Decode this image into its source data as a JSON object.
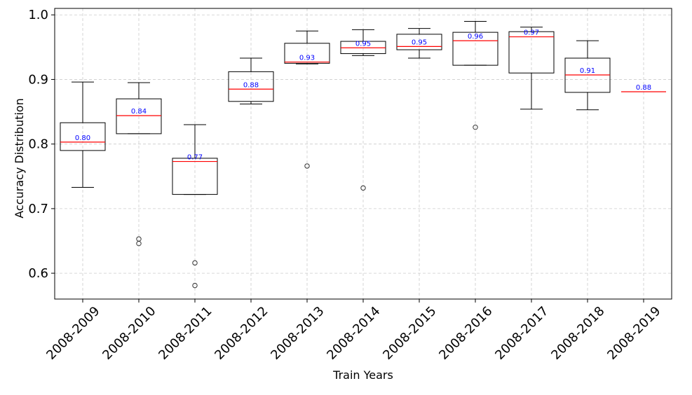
{
  "chart_data": {
    "type": "box",
    "title": "",
    "xlabel": "Train Years",
    "ylabel": "Accuracy Distribution",
    "ylim": [
      0.56,
      1.01
    ],
    "yticks": [
      0.6,
      0.7,
      0.8,
      0.9,
      1.0
    ],
    "ytick_labels": [
      "0.6",
      "0.7",
      "0.8",
      "0.9",
      "1.0"
    ],
    "grid": true,
    "colors": {
      "box": "#000000",
      "median": "#ff0000",
      "median_label": "#0000ff",
      "grid": "#cccccc",
      "flier": "#333333"
    },
    "categories": [
      "2008-2009",
      "2008-2010",
      "2008-2011",
      "2008-2012",
      "2008-2013",
      "2008-2014",
      "2008-2015",
      "2008-2016",
      "2008-2017",
      "2008-2018",
      "2008-2019"
    ],
    "boxes": [
      {
        "whislo": 0.733,
        "q1": 0.79,
        "med": 0.803,
        "q3": 0.833,
        "whishi": 0.896,
        "fliers": [],
        "label": "0.80"
      },
      {
        "whislo": 0.816,
        "q1": 0.816,
        "med": 0.844,
        "q3": 0.87,
        "whishi": 0.895,
        "fliers": [
          0.653,
          0.646
        ],
        "label": "0.84"
      },
      {
        "whislo": 0.722,
        "q1": 0.722,
        "med": 0.773,
        "q3": 0.778,
        "whishi": 0.83,
        "fliers": [
          0.616,
          0.581
        ],
        "label": "0.77"
      },
      {
        "whislo": 0.862,
        "q1": 0.866,
        "med": 0.885,
        "q3": 0.912,
        "whishi": 0.933,
        "fliers": [],
        "label": "0.88"
      },
      {
        "whislo": 0.924,
        "q1": 0.925,
        "med": 0.927,
        "q3": 0.956,
        "whishi": 0.975,
        "fliers": [
          0.766
        ],
        "label": "0.93"
      },
      {
        "whislo": 0.937,
        "q1": 0.94,
        "med": 0.949,
        "q3": 0.959,
        "whishi": 0.977,
        "fliers": [
          0.732
        ],
        "label": "0.95"
      },
      {
        "whislo": 0.933,
        "q1": 0.946,
        "med": 0.951,
        "q3": 0.97,
        "whishi": 0.979,
        "fliers": [],
        "label": "0.95"
      },
      {
        "whislo": 0.922,
        "q1": 0.922,
        "med": 0.96,
        "q3": 0.973,
        "whishi": 0.99,
        "fliers": [
          0.826
        ],
        "label": "0.96"
      },
      {
        "whislo": 0.854,
        "q1": 0.91,
        "med": 0.966,
        "q3": 0.974,
        "whishi": 0.981,
        "fliers": [],
        "label": "0.97"
      },
      {
        "whislo": 0.853,
        "q1": 0.88,
        "med": 0.907,
        "q3": 0.933,
        "whishi": 0.96,
        "fliers": [],
        "label": "0.91"
      },
      {
        "whislo": 0.881,
        "q1": 0.881,
        "med": 0.881,
        "q3": 0.881,
        "whishi": 0.881,
        "fliers": [],
        "label": "0.88"
      }
    ]
  }
}
